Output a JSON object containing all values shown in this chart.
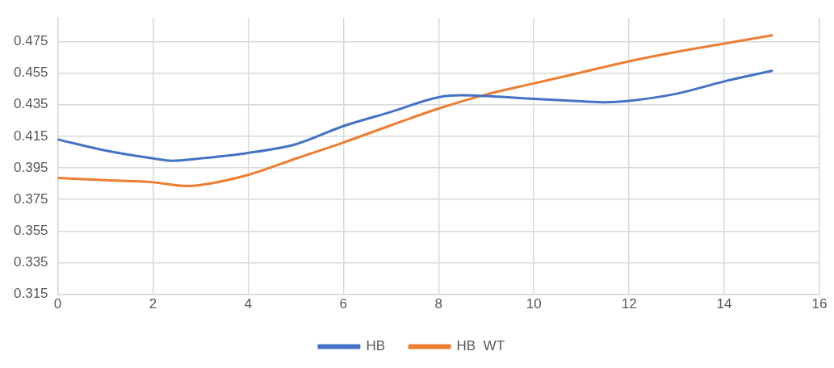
{
  "chart_data": {
    "type": "line",
    "xlim": [
      0,
      16
    ],
    "xticks": [
      0,
      2,
      4,
      6,
      8,
      10,
      12,
      14,
      16
    ],
    "ylim": [
      0.315,
      0.49
    ],
    "yticks": [
      0.315,
      0.335,
      0.355,
      0.375,
      0.395,
      0.415,
      0.435,
      0.455,
      0.475
    ],
    "grid": true,
    "legend": "bottom",
    "marker": "none",
    "line_style": "solid",
    "series": [
      {
        "name": "HB",
        "color": "#4472c4",
        "x": [
          0,
          1,
          2,
          2.4,
          3,
          4,
          5,
          6,
          7,
          8,
          8.5,
          9,
          10,
          11,
          11.5,
          12,
          13,
          14,
          15
        ],
        "values": [
          0.413,
          0.406,
          0.401,
          0.3995,
          0.401,
          0.4045,
          0.41,
          0.4215,
          0.4305,
          0.4398,
          0.441,
          0.4405,
          0.4387,
          0.4372,
          0.4366,
          0.4375,
          0.442,
          0.4498,
          0.4565
        ]
      },
      {
        "name": "HB  WT",
        "color": "#ed7d31",
        "x": [
          0,
          1,
          2,
          2.7,
          3,
          4,
          5,
          6,
          7,
          8,
          9,
          10,
          11,
          12,
          13,
          14,
          15
        ],
        "values": [
          0.3886,
          0.3872,
          0.3859,
          0.3835,
          0.3842,
          0.3906,
          0.4009,
          0.4111,
          0.422,
          0.4326,
          0.4415,
          0.4485,
          0.4555,
          0.4625,
          0.4685,
          0.4737,
          0.479
        ]
      }
    ]
  }
}
